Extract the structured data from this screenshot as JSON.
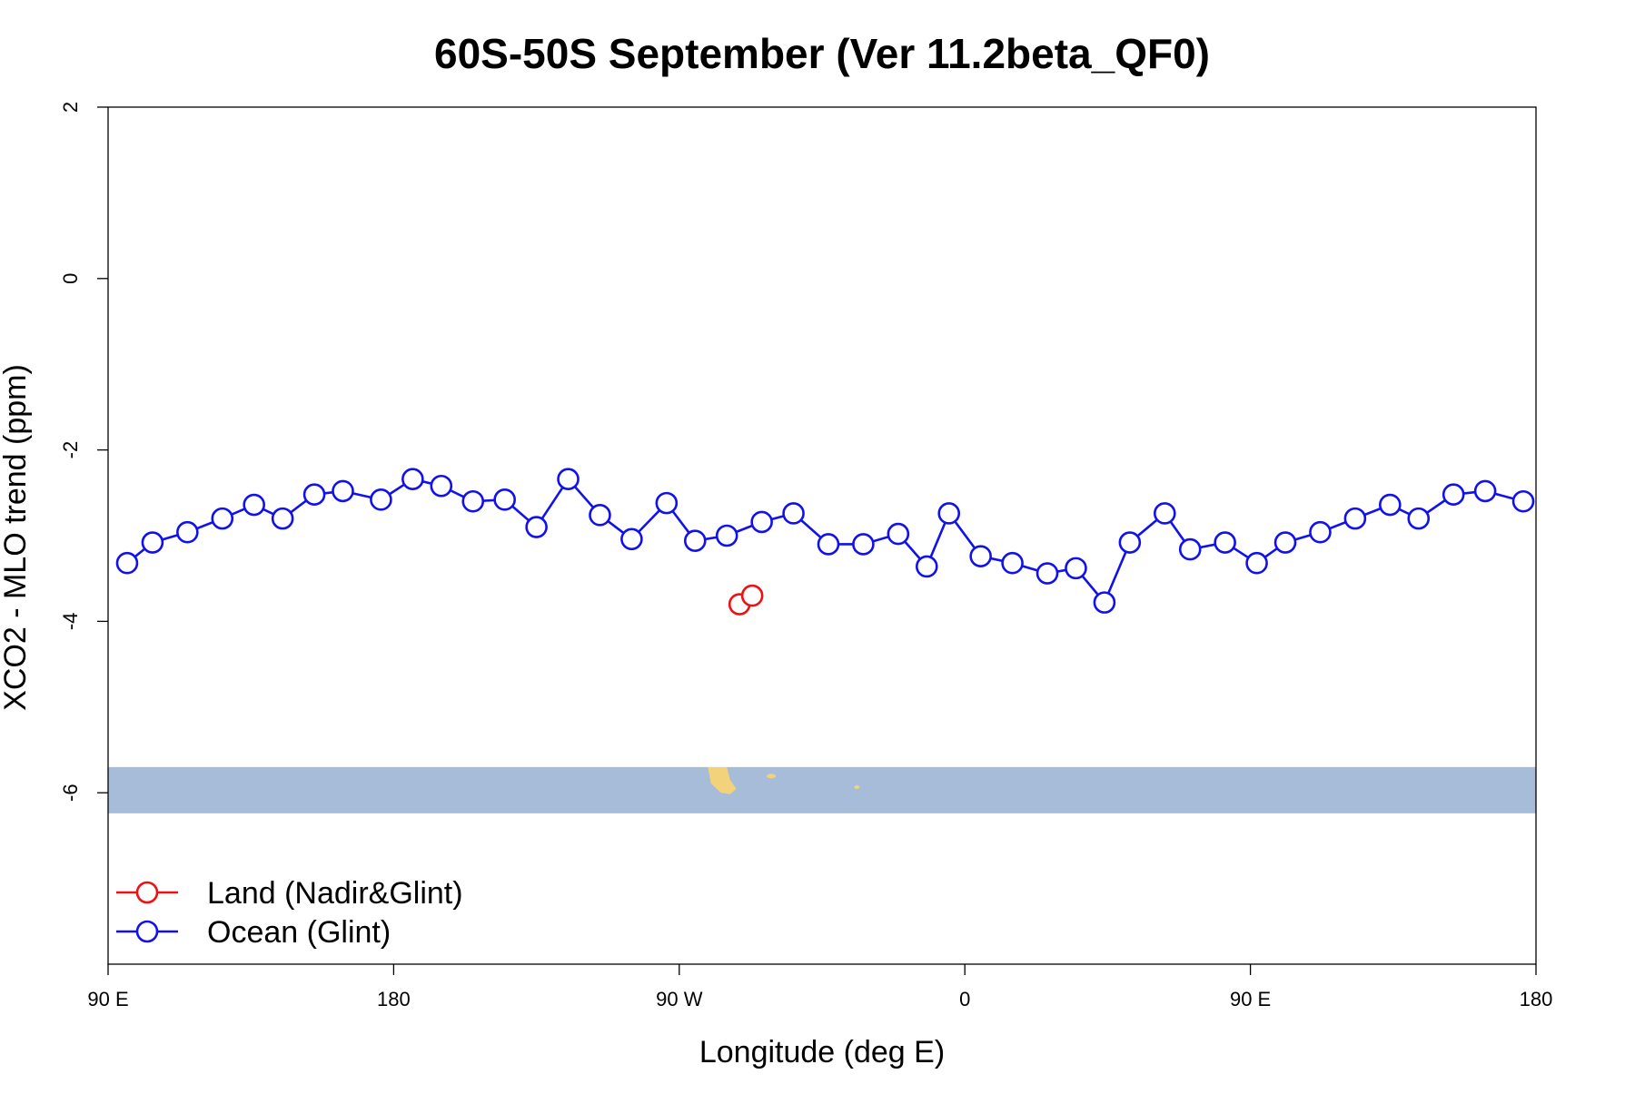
{
  "chart_data": {
    "type": "line",
    "title": "60S-50S September (Ver 11.2beta_QF0)",
    "xlabel": "Longitude (deg E)",
    "ylabel": "XCO2 - MLO trend (ppm)",
    "xlim": [
      90,
      540
    ],
    "ylim": [
      -8,
      2
    ],
    "x_ticks": [
      {
        "value": 90,
        "label": "90 E"
      },
      {
        "value": 180,
        "label": "180"
      },
      {
        "value": 270,
        "label": "90 W"
      },
      {
        "value": 360,
        "label": "0"
      },
      {
        "value": 450,
        "label": "90 E"
      },
      {
        "value": 540,
        "label": "180"
      }
    ],
    "y_ticks": [
      {
        "value": 2,
        "label": "2"
      },
      {
        "value": 0,
        "label": "0"
      },
      {
        "value": -2,
        "label": "-2"
      },
      {
        "value": -4,
        "label": "-4"
      },
      {
        "value": -6,
        "label": "-6"
      }
    ],
    "grid": false,
    "legend_position": "bottom-left",
    "map_strip": {
      "y_range": [
        -6.24,
        -5.7
      ],
      "ocean_color": "#a7bcd9",
      "land_color": "#f2d27a"
    },
    "series": [
      {
        "name": "Land (Nadir&Glint)",
        "color": "#ee1111",
        "connected": false,
        "x": [
          289,
          293
        ],
        "y": [
          -3.8,
          -3.7
        ]
      },
      {
        "name": "Ocean (Glint)",
        "color": "#1111ee",
        "connected": true,
        "x": [
          96,
          104,
          115,
          126,
          136,
          145,
          155,
          164,
          176,
          186,
          195,
          205,
          215,
          225,
          235,
          245,
          255,
          266,
          275,
          285,
          296,
          306,
          317,
          328,
          339,
          348,
          355,
          365,
          375,
          386,
          395,
          404,
          412,
          423,
          431,
          442,
          452,
          461,
          472,
          483,
          494,
          503,
          514,
          524,
          536
        ],
        "y": [
          -3.32,
          -3.08,
          -2.96,
          -2.8,
          -2.64,
          -2.8,
          -2.52,
          -2.48,
          -2.58,
          -2.34,
          -2.42,
          -2.6,
          -2.58,
          -2.9,
          -2.34,
          -2.76,
          -3.04,
          -2.62,
          -3.06,
          -3.0,
          -2.84,
          -2.74,
          -3.1,
          -3.1,
          -2.98,
          -3.36,
          -2.74,
          -3.24,
          -3.32,
          -3.44,
          -3.38,
          -3.78,
          -3.08,
          -2.74,
          -3.16,
          -3.08,
          -3.32,
          -3.08,
          -2.96,
          -2.8,
          -2.64,
          -2.8,
          -2.52,
          -2.48,
          -2.6
        ]
      }
    ]
  }
}
